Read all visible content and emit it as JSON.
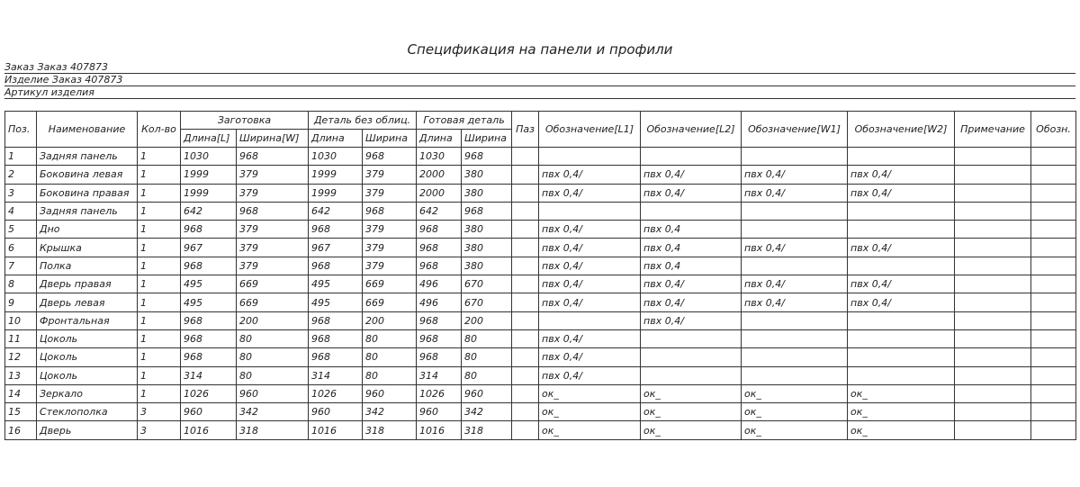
{
  "title": "Спецификация на панели и профили",
  "info": [
    {
      "label": "Заказ",
      "value": "Заказ 407873"
    },
    {
      "label": "Изделие",
      "value": "Заказ 407873"
    },
    {
      "label": "Артикул изделия",
      "value": ""
    }
  ],
  "headers": {
    "pos": "Поз.",
    "name": "Наименование",
    "qty": "Кол-во",
    "blank": "Заготовка",
    "blank_l": "Длина[L]",
    "blank_w": "Ширина[W]",
    "detail": "Деталь без облиц.",
    "detail_l": "Длина",
    "detail_w": "Ширина",
    "finished": "Готовая деталь",
    "finished_l": "Длина",
    "finished_w": "Ширина",
    "paz": "Паз",
    "l1": "Обозначение[L1]",
    "l2": "Обозначение[L2]",
    "w1": "Обозначение[W1]",
    "w2": "Обозначение[W2]",
    "note": "Примечание",
    "code": "Обозн."
  },
  "rows": [
    [
      "1",
      "Задняя панель",
      "1",
      "1030",
      "968",
      "1030",
      "968",
      "1030",
      "968",
      "",
      "",
      "",
      "",
      "",
      "",
      ""
    ],
    [
      "2",
      "Боковина левая",
      "1",
      "1999",
      "379",
      "1999",
      "379",
      "2000",
      "380",
      "",
      "пвх 0,4/",
      "пвх 0,4/",
      "пвх 0,4/",
      "пвх 0,4/",
      "",
      ""
    ],
    [
      "3",
      "Боковина правая",
      "1",
      "1999",
      "379",
      "1999",
      "379",
      "2000",
      "380",
      "",
      "пвх 0,4/",
      "пвх 0,4/",
      "пвх 0,4/",
      "пвх 0,4/",
      "",
      ""
    ],
    [
      "4",
      "Задняя панель",
      "1",
      "642",
      "968",
      "642",
      "968",
      "642",
      "968",
      "",
      "",
      "",
      "",
      "",
      "",
      ""
    ],
    [
      "5",
      "Дно",
      "1",
      "968",
      "379",
      "968",
      "379",
      "968",
      "380",
      "",
      "пвх 0,4/",
      "пвх 0,4",
      "",
      "",
      "",
      ""
    ],
    [
      "6",
      "Крышка",
      "1",
      "967",
      "379",
      "967",
      "379",
      "968",
      "380",
      "",
      "пвх 0,4/",
      "пвх 0,4",
      "пвх 0,4/",
      "пвх 0,4/",
      "",
      ""
    ],
    [
      "7",
      "Полка",
      "1",
      "968",
      "379",
      "968",
      "379",
      "968",
      "380",
      "",
      "пвх 0,4/",
      "пвх 0,4",
      "",
      "",
      "",
      ""
    ],
    [
      "8",
      "Дверь правая",
      "1",
      "495",
      "669",
      "495",
      "669",
      "496",
      "670",
      "",
      "пвх 0,4/",
      "пвх 0,4/",
      "пвх 0,4/",
      "пвх 0,4/",
      "",
      ""
    ],
    [
      "9",
      "Дверь левая",
      "1",
      "495",
      "669",
      "495",
      "669",
      "496",
      "670",
      "",
      "пвх 0,4/",
      "пвх 0,4/",
      "пвх 0,4/",
      "пвх 0,4/",
      "",
      ""
    ],
    [
      "10",
      "Фронтальная",
      "1",
      "968",
      "200",
      "968",
      "200",
      "968",
      "200",
      "",
      "",
      "пвх 0,4/",
      "",
      "",
      "",
      ""
    ],
    [
      "11",
      "Цоколь",
      "1",
      "968",
      "80",
      "968",
      "80",
      "968",
      "80",
      "",
      "пвх 0,4/",
      "",
      "",
      "",
      "",
      ""
    ],
    [
      "12",
      "Цоколь",
      "1",
      "968",
      "80",
      "968",
      "80",
      "968",
      "80",
      "",
      "пвх 0,4/",
      "",
      "",
      "",
      "",
      ""
    ],
    [
      "13",
      "Цоколь",
      "1",
      "314",
      "80",
      "314",
      "80",
      "314",
      "80",
      "",
      "пвх 0,4/",
      "",
      "",
      "",
      "",
      ""
    ],
    [
      "14",
      "Зеркало",
      "1",
      "1026",
      "960",
      "1026",
      "960",
      "1026",
      "960",
      "",
      "ок_",
      "ок_",
      "ок_",
      "ок_",
      "",
      ""
    ],
    [
      "15",
      "Стеклополка",
      "3",
      "960",
      "342",
      "960",
      "342",
      "960",
      "342",
      "",
      "ок_",
      "ок_",
      "ок_",
      "ок_",
      "",
      ""
    ],
    [
      "16",
      "Дверь",
      "3",
      "1016",
      "318",
      "1016",
      "318",
      "1016",
      "318",
      "",
      "ок_",
      "ок_",
      "ок_",
      "ок_",
      "",
      ""
    ]
  ]
}
